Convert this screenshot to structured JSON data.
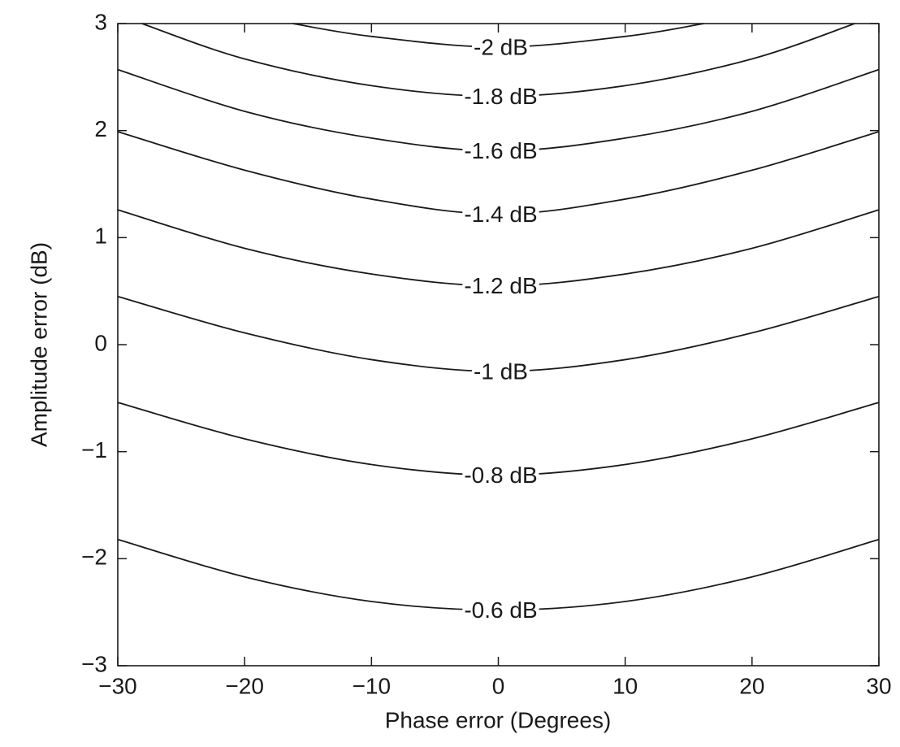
{
  "chart_data": {
    "type": "contour",
    "xlabel": "Phase error (Degrees)",
    "ylabel": "Amplitude error (dB)",
    "xlim": [
      -30,
      30
    ],
    "ylim": [
      -3,
      3
    ],
    "xticks": [
      {
        "value": -30,
        "label": "−30"
      },
      {
        "value": -20,
        "label": "−20"
      },
      {
        "value": -10,
        "label": "−10"
      },
      0,
      10,
      20,
      30
    ],
    "yticks": [
      {
        "value": -3,
        "label": "−3"
      },
      {
        "value": -2,
        "label": "−2"
      },
      {
        "value": -1,
        "label": "−1"
      },
      0,
      1,
      2,
      3
    ],
    "color": "#1a1a1a",
    "series": [
      {
        "name": "-2 dB",
        "x": [
          -16.2,
          -10,
          0,
          10,
          16.2
        ],
        "values": [
          3,
          2.88,
          2.78,
          2.88,
          3
        ]
      },
      {
        "name": "-1.8 dB",
        "x": [
          -28.1,
          -20,
          -10,
          0,
          10,
          20,
          28.1
        ],
        "values": [
          3,
          2.67,
          2.42,
          2.32,
          2.42,
          2.67,
          3
        ]
      },
      {
        "name": "-1.6 dB",
        "x": [
          -30,
          -20,
          -10,
          0,
          10,
          20,
          30
        ],
        "values": [
          2.57,
          2.18,
          1.93,
          1.81,
          1.93,
          2.18,
          2.57
        ]
      },
      {
        "name": "-1.4 dB",
        "x": [
          -30,
          -20,
          -10,
          0,
          10,
          20,
          30
        ],
        "values": [
          1.99,
          1.63,
          1.36,
          1.22,
          1.36,
          1.63,
          1.99
        ]
      },
      {
        "name": "-1.2 dB",
        "x": [
          -30,
          -20,
          -10,
          0,
          10,
          20,
          30
        ],
        "values": [
          1.26,
          0.9,
          0.66,
          0.55,
          0.66,
          0.9,
          1.26
        ]
      },
      {
        "name": "-1 dB",
        "x": [
          -30,
          -20,
          -10,
          0,
          10,
          20,
          30
        ],
        "values": [
          0.45,
          0.11,
          -0.14,
          -0.25,
          -0.14,
          0.11,
          0.45
        ]
      },
      {
        "name": "-0.8 dB",
        "x": [
          -30,
          -20,
          -10,
          0,
          10,
          20,
          30
        ],
        "values": [
          -0.54,
          -0.88,
          -1.12,
          -1.22,
          -1.12,
          -0.88,
          -0.54
        ]
      },
      {
        "name": "-0.6 dB",
        "x": [
          -30,
          -20,
          -10,
          0,
          10,
          20,
          30
        ],
        "values": [
          -1.82,
          -2.17,
          -2.4,
          -2.48,
          -2.4,
          -2.17,
          -1.82
        ]
      }
    ]
  }
}
